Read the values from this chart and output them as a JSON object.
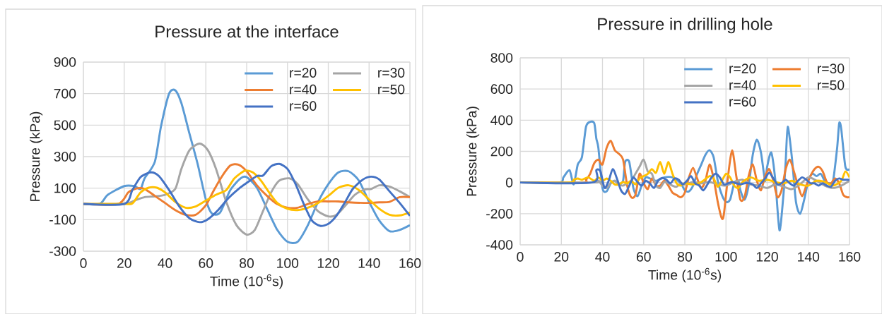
{
  "chart_data": [
    {
      "type": "line",
      "title": "Pressure at the interface",
      "xlabel": "Time (10$^{-6}$s)",
      "ylabel": "Pressure (kPa)",
      "xlim": [
        0,
        160
      ],
      "xticks": [
        0,
        20,
        40,
        60,
        80,
        100,
        120,
        140,
        160
      ],
      "ylim": [
        -300,
        900
      ],
      "yticks": [
        -300,
        -100,
        100,
        300,
        500,
        700,
        900
      ],
      "grid": true,
      "legend": "top right",
      "series": [
        {
          "name": "r=20",
          "color": "#5b9bd5",
          "x": [
            0,
            8,
            12,
            20,
            25,
            28,
            30,
            35,
            38,
            42,
            45,
            48,
            52,
            56,
            60,
            63,
            67,
            72,
            77,
            80,
            85,
            90,
            95,
            100,
            105,
            110,
            115,
            120,
            125,
            130,
            135,
            140,
            145,
            150,
            155,
            160
          ],
          "values": [
            0,
            0,
            58,
            113,
            113,
            95,
            162,
            267,
            490,
            700,
            721,
            640,
            445,
            252,
            28,
            -61,
            -54,
            88,
            162,
            170,
            103,
            -31,
            -165,
            -240,
            -240,
            -135,
            13,
            125,
            200,
            207,
            148,
            13,
            -106,
            -173,
            -165,
            -135
          ]
        },
        {
          "name": "r=30",
          "color": "#a5a5a5",
          "x": [
            0,
            20,
            25,
            30,
            35,
            40,
            45,
            48,
            52,
            57,
            61,
            65,
            70,
            75,
            80,
            84,
            88,
            92,
            96,
            101,
            105,
            110,
            115,
            120,
            124,
            128,
            133,
            138,
            141,
            145,
            150,
            155,
            160
          ],
          "values": [
            0,
            0,
            21,
            43,
            48,
            58,
            95,
            222,
            341,
            383,
            341,
            222,
            13,
            -135,
            -195,
            -165,
            -46,
            73,
            148,
            162,
            125,
            28,
            -46,
            -79,
            -69,
            -16,
            58,
            92,
            95,
            118,
            110,
            80,
            43
          ]
        },
        {
          "name": "r=40",
          "color": "#ed7d31",
          "x": [
            0,
            17,
            22,
            26,
            30,
            35,
            40,
            45,
            50,
            55,
            60,
            64,
            68,
            72,
            76,
            80,
            85,
            90,
            95,
            100,
            105,
            110,
            115,
            120,
            125,
            130,
            140,
            145,
            150,
            155,
            160
          ],
          "values": [
            0,
            0,
            73,
            98,
            95,
            51,
            6,
            -39,
            -69,
            -69,
            -9,
            88,
            177,
            244,
            249,
            207,
            118,
            51,
            -1,
            -24,
            -24,
            -1,
            16,
            16,
            16,
            10,
            6,
            10,
            13,
            43,
            43
          ]
        },
        {
          "name": "r=50",
          "color": "#ffc000",
          "x": [
            0,
            20,
            24,
            28,
            32,
            36,
            40,
            45,
            50,
            55,
            60,
            65,
            70,
            74,
            79,
            83,
            87,
            91,
            95,
            100,
            105,
            110,
            115,
            120,
            125,
            130,
            135,
            140,
            145,
            150,
            155,
            160
          ],
          "values": [
            0,
            0,
            3,
            73,
            103,
            103,
            73,
            13,
            -24,
            -16,
            21,
            58,
            88,
            162,
            210,
            200,
            148,
            73,
            6,
            -31,
            -39,
            -24,
            6,
            51,
            103,
            118,
            88,
            28,
            -31,
            -69,
            -73,
            -54
          ]
        },
        {
          "name": "r=60",
          "color": "#4472c4",
          "x": [
            0,
            20,
            24,
            28,
            33,
            37,
            42,
            47,
            52,
            57,
            61,
            66,
            71,
            76,
            80,
            85,
            88,
            92,
            96,
            100,
            104,
            108,
            112,
            116,
            120,
            124,
            128,
            132,
            137,
            141,
            145,
            150,
            155,
            160
          ],
          "values": [
            0,
            0,
            88,
            170,
            200,
            177,
            88,
            -16,
            -91,
            -116,
            -97,
            -39,
            36,
            95,
            133,
            177,
            180,
            239,
            254,
            222,
            125,
            -1,
            -106,
            -139,
            -127,
            -76,
            6,
            95,
            155,
            173,
            155,
            80,
            6,
            -76
          ]
        }
      ]
    },
    {
      "type": "line",
      "title": "Pressure in drilling hole",
      "xlabel": "Time (10$^{-6}$s)",
      "ylabel": "Pressure (kPa)",
      "xlim": [
        0,
        160
      ],
      "xticks": [
        0,
        20,
        40,
        60,
        80,
        100,
        120,
        140,
        160
      ],
      "ylim": [
        -400,
        800
      ],
      "yticks": [
        -400,
        -200,
        0,
        200,
        400,
        600,
        800
      ],
      "grid": true,
      "legend": "top right",
      "series": [
        {
          "name": "r=20",
          "color": "#5b9bd5",
          "x": [
            0,
            19,
            21,
            24,
            26,
            28,
            30,
            32,
            34,
            36,
            37,
            38,
            40,
            42,
            44,
            46,
            48,
            50,
            51,
            53,
            55,
            57,
            59,
            61,
            63,
            66,
            70,
            74,
            78,
            80,
            82,
            84,
            86,
            88,
            90,
            92,
            94,
            96,
            98,
            100,
            102,
            104,
            106,
            107,
            109,
            111,
            113,
            115,
            117,
            119,
            120,
            122,
            124,
            126,
            128,
            129,
            130,
            132,
            134,
            136,
            138,
            140,
            142,
            144,
            146,
            148,
            150,
            152,
            154,
            155,
            156,
            158,
            160
          ],
          "values": [
            0,
            0,
            33,
            79,
            -12,
            116,
            162,
            358,
            389,
            381,
            283,
            222,
            -35,
            -57,
            -5,
            11,
            -12,
            11,
            132,
            132,
            -35,
            -88,
            -20,
            33,
            26,
            11,
            33,
            33,
            -5,
            -50,
            -57,
            -20,
            56,
            116,
            177,
            207,
            162,
            11,
            -80,
            -125,
            -110,
            -5,
            11,
            -50,
            -110,
            -20,
            177,
            275,
            192,
            11,
            101,
            192,
            11,
            -307,
            -65,
            132,
            358,
            162,
            -125,
            -201,
            -110,
            11,
            56,
            41,
            56,
            11,
            -5,
            11,
            222,
            381,
            343,
            101,
            86
          ]
        },
        {
          "name": "r=30",
          "color": "#ed7d31",
          "x": [
            0,
            30,
            32,
            34,
            36,
            38,
            40,
            42,
            44,
            46,
            48,
            50,
            52,
            54,
            56,
            58,
            60,
            62,
            64,
            66,
            68,
            70,
            72,
            74,
            76,
            78,
            80,
            82,
            84,
            86,
            88,
            90,
            92,
            94,
            96,
            98,
            99,
            101,
            103,
            105,
            107,
            109,
            111,
            113,
            115,
            117,
            119,
            121,
            123,
            125,
            127,
            129,
            131,
            133,
            135,
            137,
            139,
            141,
            143,
            145,
            147,
            149,
            151,
            153,
            155,
            157,
            159,
            160
          ],
          "values": [
            0,
            0,
            18,
            56,
            124,
            147,
            116,
            222,
            268,
            207,
            184,
            147,
            -20,
            -95,
            -80,
            56,
            -5,
            -42,
            26,
            -20,
            -20,
            11,
            -20,
            -65,
            -80,
            -95,
            -65,
            33,
            94,
            26,
            -35,
            11,
            116,
            26,
            -125,
            -231,
            -201,
            41,
            207,
            41,
            -110,
            -95,
            41,
            116,
            11,
            -50,
            41,
            86,
            11,
            -95,
            -50,
            86,
            147,
            71,
            -20,
            -88,
            -20,
            41,
            86,
            101,
            71,
            3,
            -5,
            26,
            -5,
            -80,
            -95,
            -92
          ]
        },
        {
          "name": "r=40",
          "color": "#a5a5a5",
          "x": [
            0,
            36,
            38,
            40,
            42,
            44,
            46,
            48,
            50,
            52,
            54,
            56,
            58,
            60,
            62,
            64,
            66,
            68,
            70,
            72,
            74,
            76,
            78,
            80,
            84,
            88,
            92,
            96,
            100,
            104,
            108,
            112,
            116,
            120,
            124,
            128,
            132,
            136,
            140,
            144,
            148,
            152,
            156,
            160
          ],
          "values": [
            0,
            0,
            11,
            -20,
            -35,
            -5,
            11,
            -12,
            -20,
            -5,
            11,
            56,
            101,
            147,
            71,
            56,
            -20,
            -35,
            3,
            -5,
            -20,
            -27,
            -5,
            -12,
            3,
            -5,
            3,
            -12,
            -20,
            3,
            18,
            -12,
            -20,
            -35,
            -12,
            -27,
            -42,
            -12,
            33,
            11,
            -20,
            -35,
            -20,
            11
          ]
        },
        {
          "name": "r=50",
          "color": "#ffc000",
          "x": [
            0,
            24,
            26,
            28,
            30,
            33,
            36,
            38,
            40,
            42,
            44,
            46,
            48,
            50,
            52,
            54,
            56,
            58,
            60,
            62,
            64,
            66,
            68,
            70,
            72,
            74,
            76,
            78,
            80,
            84,
            88,
            92,
            94,
            96,
            98,
            100,
            102,
            104,
            106,
            108,
            112,
            116,
            120,
            124,
            128,
            132,
            136,
            140,
            144,
            148,
            152,
            156,
            158,
            160
          ],
          "values": [
            0,
            0,
            18,
            26,
            18,
            33,
            11,
            33,
            11,
            26,
            11,
            -12,
            -12,
            3,
            -5,
            11,
            -12,
            26,
            41,
            56,
            86,
            63,
            132,
            56,
            132,
            56,
            -5,
            -20,
            -5,
            -12,
            3,
            41,
            26,
            -27,
            11,
            56,
            33,
            -20,
            -35,
            3,
            33,
            11,
            18,
            3,
            -5,
            11,
            -12,
            -20,
            11,
            3,
            -20,
            11,
            71,
            33
          ]
        },
        {
          "name": "r=60",
          "color": "#4472c4",
          "x": [
            0,
            35,
            37,
            39,
            41,
            43,
            45,
            47,
            49,
            51,
            53,
            55,
            57,
            59,
            61,
            63,
            65,
            67,
            69,
            71,
            73,
            75,
            77,
            79,
            81,
            83,
            85,
            87,
            89,
            91,
            93,
            95,
            97,
            99,
            101,
            103,
            105,
            107,
            109,
            111,
            113,
            115,
            117,
            119,
            121,
            123,
            125,
            127,
            129,
            131,
            133,
            135,
            137,
            139,
            141,
            143,
            145,
            147,
            149,
            151,
            153,
            155,
            157,
            160
          ],
          "values": [
            0,
            0,
            79,
            71,
            -35,
            11,
            86,
            26,
            -50,
            -73,
            -20,
            33,
            3,
            -20,
            11,
            -5,
            -35,
            11,
            29,
            18,
            -5,
            26,
            18,
            -12,
            11,
            41,
            -5,
            -20,
            -50,
            -12,
            33,
            56,
            33,
            -12,
            -5,
            3,
            -5,
            -12,
            -5,
            -5,
            -12,
            -35,
            -5,
            26,
            63,
            26,
            -12,
            -5,
            18,
            -5,
            -20,
            11,
            33,
            18,
            -5,
            -5,
            -20,
            -5,
            -20,
            -27,
            11,
            26,
            18,
            18
          ]
        }
      ]
    }
  ]
}
